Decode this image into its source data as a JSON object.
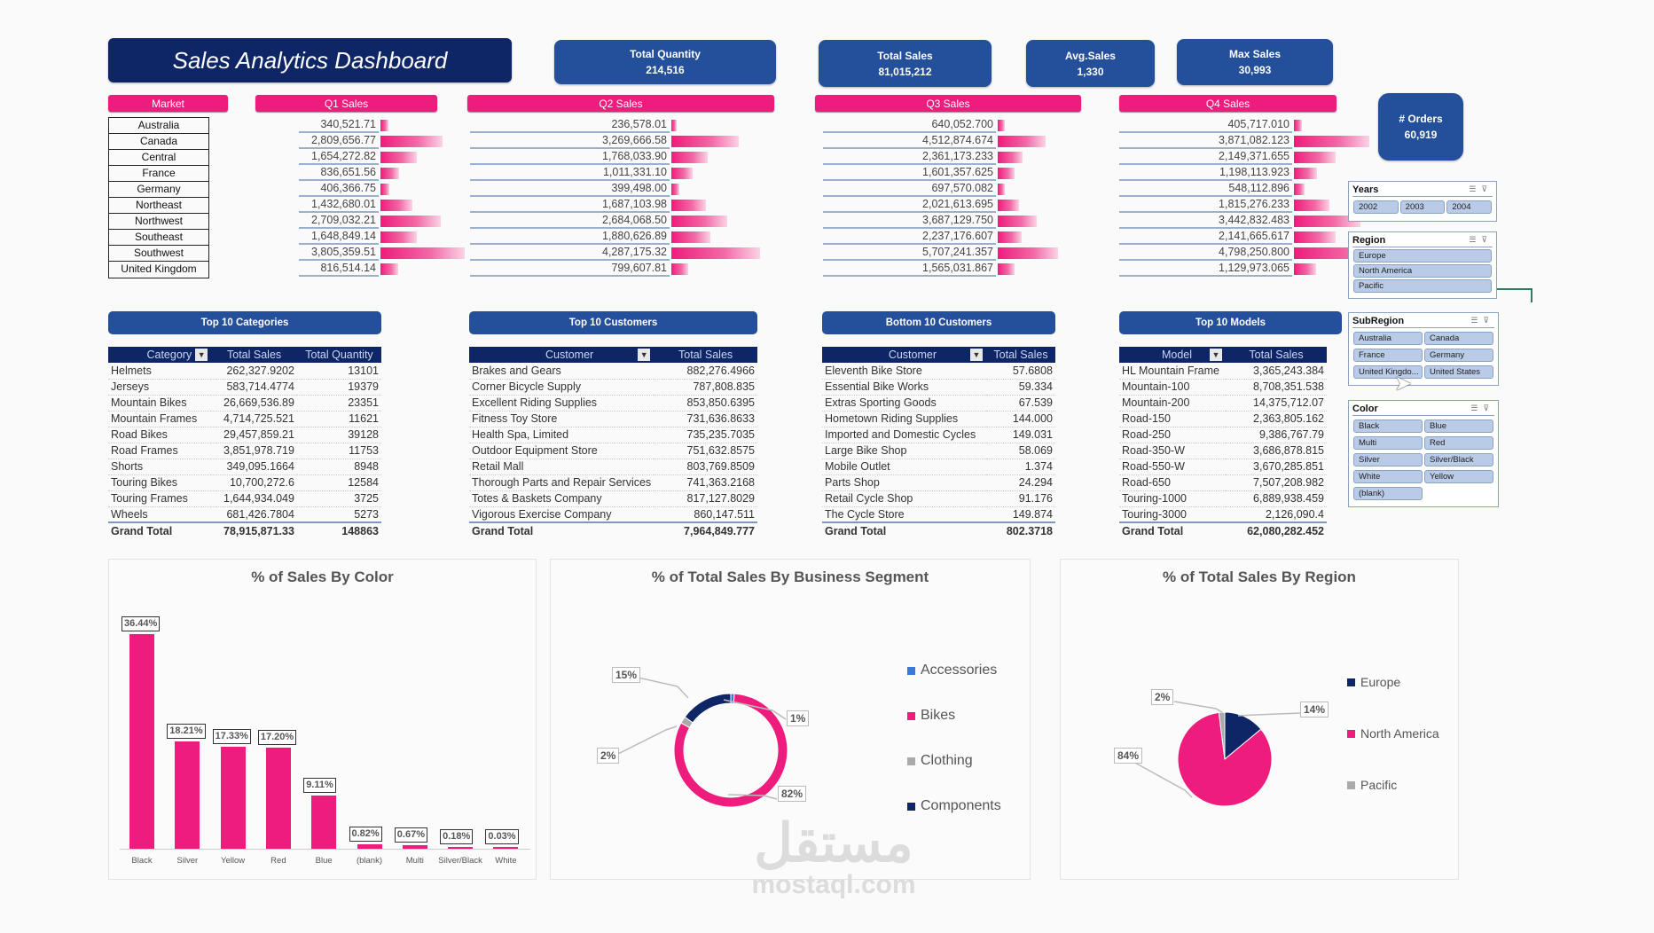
{
  "header": {
    "title": "Sales Analytics Dashboard",
    "kpis": [
      {
        "label": "Total Quantity",
        "value": "214,516"
      },
      {
        "label": "Total Sales",
        "value": "81,015,212"
      },
      {
        "label": "Avg.Sales",
        "value": "1,330"
      },
      {
        "label": "Max Sales",
        "value": "30,993"
      },
      {
        "label": "# Orders",
        "value": "60,919"
      }
    ]
  },
  "quarterly": {
    "headers": {
      "market": "Market",
      "q1": "Q1 Sales",
      "q2": "Q2 Sales",
      "q3": "Q3 Sales",
      "q4": "Q4 Sales"
    },
    "markets": [
      "Australia",
      "Canada",
      "Central",
      "France",
      "Germany",
      "Northeast",
      "Northwest",
      "Southeast",
      "Southwest",
      "United Kingdom"
    ],
    "q1": [
      "340,521.71",
      "2,809,656.77",
      "1,654,272.82",
      "836,651.56",
      "406,366.75",
      "1,432,680.01",
      "2,709,032.21",
      "1,648,849.14",
      "3,805,359.51",
      "816,514.14"
    ],
    "q2": [
      "236,578.01",
      "3,269,666.58",
      "1,768,033.90",
      "1,011,331.10",
      "399,498.00",
      "1,687,103.98",
      "2,684,068.50",
      "1,880,626.89",
      "4,287,175.32",
      "799,607.81"
    ],
    "q3": [
      "640,052.700",
      "4,512,874.674",
      "2,361,173.233",
      "1,601,357.625",
      "697,570.082",
      "2,021,613.695",
      "3,687,129.750",
      "2,237,176.607",
      "5,707,241.357",
      "1,565,031.867"
    ],
    "q4": [
      "405,717.010",
      "3,871,082.123",
      "2,149,371.655",
      "1,198,113.923",
      "548,112.896",
      "1,815,276.233",
      "3,442,832.483",
      "2,141,665.617",
      "4,798,250.800",
      "1,129,973.065"
    ]
  },
  "top_categories": {
    "title": "Top 10 Categories",
    "columns": [
      "Category",
      "Total Sales",
      "Total Quantity"
    ],
    "rows": [
      [
        "Helmets",
        "262,327.9202",
        "13101"
      ],
      [
        "Jerseys",
        "583,714.4774",
        "19379"
      ],
      [
        "Mountain Bikes",
        "26,669,536.89",
        "23351"
      ],
      [
        "Mountain Frames",
        "4,714,725.521",
        "11621"
      ],
      [
        "Road Bikes",
        "29,457,859.21",
        "39128"
      ],
      [
        "Road Frames",
        "3,851,978.719",
        "11753"
      ],
      [
        "Shorts",
        "349,095.1664",
        "8948"
      ],
      [
        "Touring Bikes",
        "10,700,272.6",
        "12584"
      ],
      [
        "Touring Frames",
        "1,644,934.049",
        "3725"
      ],
      [
        "Wheels",
        "681,426.7804",
        "5273"
      ]
    ],
    "total": [
      "Grand Total",
      "78,915,871.33",
      "148863"
    ]
  },
  "top_customers": {
    "title": "Top 10 Customers",
    "columns": [
      "Customer",
      "Total Sales"
    ],
    "rows": [
      [
        "Brakes and Gears",
        "882,276.4966"
      ],
      [
        "Corner Bicycle Supply",
        "787,808.835"
      ],
      [
        "Excellent Riding Supplies",
        "853,850.6395"
      ],
      [
        "Fitness Toy Store",
        "731,636.8633"
      ],
      [
        "Health Spa, Limited",
        "735,235.7035"
      ],
      [
        "Outdoor Equipment Store",
        "751,632.8575"
      ],
      [
        "Retail Mall",
        "803,769.8509"
      ],
      [
        "Thorough Parts and Repair Services",
        "741,363.2168"
      ],
      [
        "Totes & Baskets Company",
        "817,127.8029"
      ],
      [
        "Vigorous Exercise Company",
        "860,147.511"
      ]
    ],
    "total": [
      "Grand Total",
      "7,964,849.777"
    ]
  },
  "bottom_customers": {
    "title": "Bottom 10 Customers",
    "columns": [
      "Customer",
      "Total Sales"
    ],
    "rows": [
      [
        "Eleventh Bike Store",
        "57.6808"
      ],
      [
        "Essential Bike Works",
        "59.334"
      ],
      [
        "Extras Sporting Goods",
        "67.539"
      ],
      [
        "Hometown Riding Supplies",
        "144.000"
      ],
      [
        "Imported and Domestic Cycles",
        "149.031"
      ],
      [
        "Large Bike Shop",
        "58.069"
      ],
      [
        "Mobile Outlet",
        "1.374"
      ],
      [
        "Parts Shop",
        "24.294"
      ],
      [
        "Retail Cycle Shop",
        "91.176"
      ],
      [
        "The Cycle Store",
        "149.874"
      ]
    ],
    "total": [
      "Grand Total",
      "802.3718"
    ]
  },
  "top_models": {
    "title": "Top 10 Models",
    "columns": [
      "Model",
      "Total Sales"
    ],
    "rows": [
      [
        "HL Mountain Frame",
        "3,365,243.384"
      ],
      [
        "Mountain-100",
        "8,708,351.538"
      ],
      [
        "Mountain-200",
        "14,375,712.07"
      ],
      [
        "Road-150",
        "2,363,805.162"
      ],
      [
        "Road-250",
        "9,386,767.79"
      ],
      [
        "Road-350-W",
        "3,686,878.815"
      ],
      [
        "Road-550-W",
        "3,670,285.851"
      ],
      [
        "Road-650",
        "7,507,208.982"
      ],
      [
        "Touring-1000",
        "6,889,938.459"
      ],
      [
        "Touring-3000",
        "2,126,090.4"
      ]
    ],
    "total": [
      "Grand Total",
      "62,080,282.452"
    ]
  },
  "slicers": {
    "years": {
      "title": "Years",
      "items": [
        "2002",
        "2003",
        "2004"
      ]
    },
    "region": {
      "title": "Region",
      "items": [
        "Europe",
        "North America",
        "Pacific"
      ]
    },
    "subregion": {
      "title": "SubRegion",
      "items": [
        "Australia",
        "Canada",
        "France",
        "Germany",
        "United Kingdo...",
        "United States"
      ]
    },
    "color": {
      "title": "Color",
      "items": [
        "Black",
        "Blue",
        "Multi",
        "Red",
        "Silver",
        "Silver/Black",
        "White",
        "Yellow",
        "(blank)"
      ]
    }
  },
  "chart_data": [
    {
      "type": "bar",
      "title": "% of Sales By Color",
      "categories": [
        "Black",
        "Silver",
        "Yellow",
        "Red",
        "Blue",
        "(blank)",
        "Multi",
        "Silver/Black",
        "White"
      ],
      "values": [
        36.44,
        18.21,
        17.33,
        17.2,
        9.11,
        0.82,
        0.67,
        0.18,
        0.03
      ],
      "labels": [
        "36.44%",
        "18.21%",
        "17.33%",
        "17.20%",
        "9.11%",
        "0.82%",
        "0.67%",
        "0.18%",
        "0.03%"
      ],
      "xlabel": "",
      "ylabel": "",
      "grid": false,
      "color": "#ee1c7c"
    },
    {
      "type": "pie",
      "subtype": "doughnut",
      "title": "% of Total Sales By Business Segment",
      "categories": [
        "Accessories",
        "Bikes",
        "Clothing",
        "Components"
      ],
      "values": [
        1,
        82,
        2,
        15
      ],
      "labels": [
        "1%",
        "82%",
        "2%",
        "15%"
      ],
      "colors": [
        "#3c78d8",
        "#ee1c7c",
        "#aaaaaa",
        "#0e2566"
      ],
      "legend_position": "right"
    },
    {
      "type": "pie",
      "title": "% of Total Sales By Region",
      "categories": [
        "Europe",
        "North America",
        "Pacific"
      ],
      "values": [
        14,
        84,
        2
      ],
      "labels": [
        "14%",
        "84%",
        "2%"
      ],
      "colors": [
        "#0e2566",
        "#ee1c7c",
        "#aaaaaa"
      ],
      "legend_position": "right"
    }
  ],
  "watermark": {
    "arabic": "مستقل",
    "latin": "mostaql.com"
  }
}
